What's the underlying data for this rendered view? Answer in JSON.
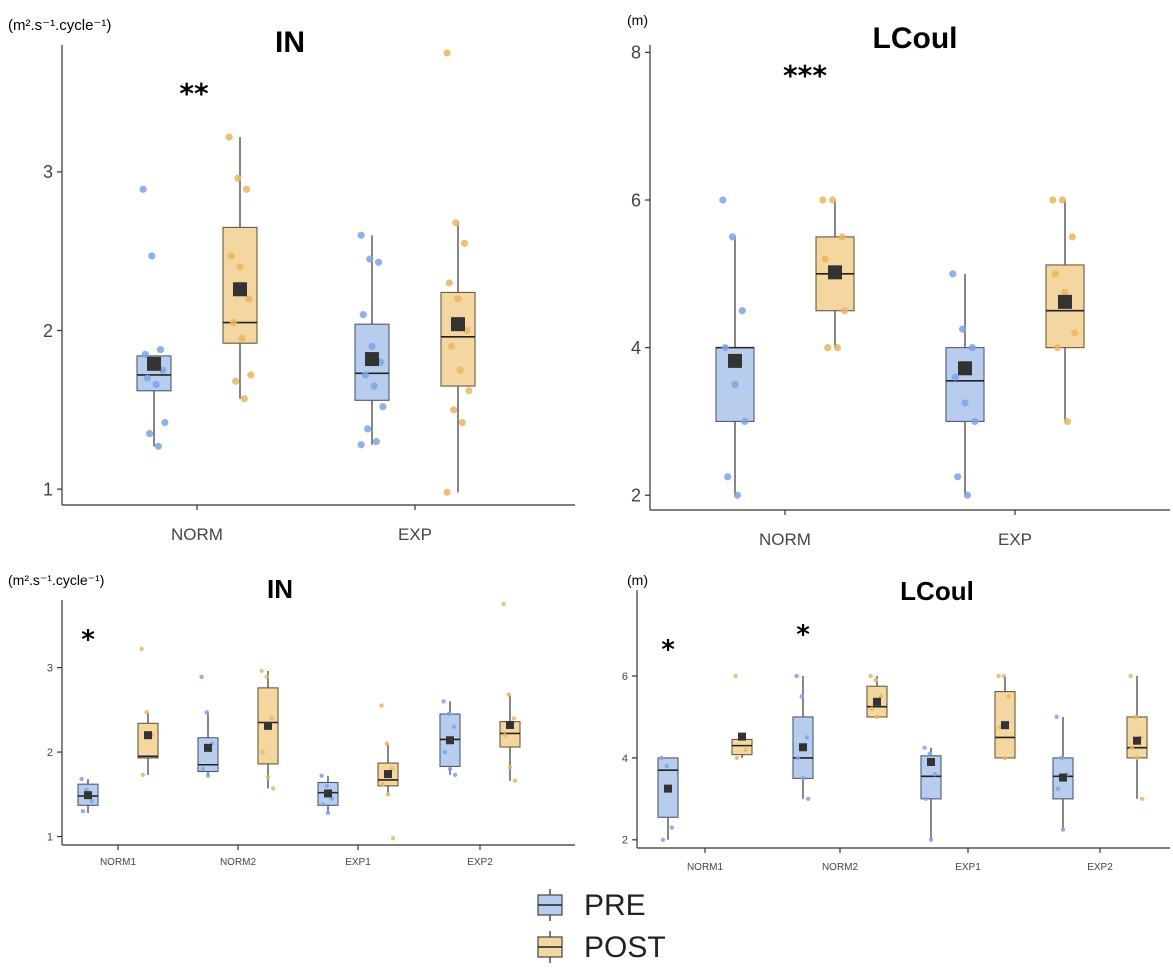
{
  "colors": {
    "pre_fill": "#b8cdee",
    "pre_stroke": "#4a5a78",
    "pre_point": "#7ba3e6",
    "post_fill": "#f3d6a0",
    "post_stroke": "#6b5a3a",
    "post_point": "#e9b560",
    "mean": "#333333"
  },
  "legend": {
    "items": [
      {
        "label": "PRE",
        "color": "#b8cdee"
      },
      {
        "label": "POST",
        "color": "#f3d6a0"
      }
    ]
  },
  "chart_data": [
    {
      "type": "box",
      "title": "IN",
      "ylabel": "(m².s⁻¹.cycle⁻¹)",
      "ylim": [
        0.9,
        3.8
      ],
      "yticks": [
        "1",
        "2",
        "3"
      ],
      "yticks_val": [
        1,
        2,
        3
      ],
      "categories": [
        "NORM",
        "EXP"
      ],
      "groups": [
        {
          "category": "NORM",
          "significance": "**",
          "pre": {
            "q1": 1.62,
            "median": 1.72,
            "q3": 1.84,
            "whisker_low": 1.27,
            "whisker_high": 1.84,
            "mean": 1.79,
            "points": [
              2.89,
              2.47,
              1.88,
              1.85,
              1.8,
              1.75,
              1.7,
              1.66,
              1.42,
              1.35,
              1.27
            ]
          },
          "post": {
            "q1": 1.92,
            "median": 2.05,
            "q3": 2.65,
            "whisker_low": 1.57,
            "whisker_high": 3.22,
            "mean": 2.26,
            "points": [
              3.22,
              2.96,
              2.89,
              2.47,
              2.4,
              2.2,
              2.05,
              1.95,
              1.72,
              1.68,
              1.57
            ]
          }
        },
        {
          "category": "EXP",
          "significance": "",
          "pre": {
            "q1": 1.56,
            "median": 1.73,
            "q3": 2.04,
            "whisker_low": 1.28,
            "whisker_high": 2.6,
            "mean": 1.82,
            "points": [
              2.6,
              2.45,
              2.43,
              2.1,
              1.9,
              1.8,
              1.72,
              1.65,
              1.52,
              1.38,
              1.3,
              1.28
            ]
          },
          "post": {
            "q1": 1.65,
            "median": 1.96,
            "q3": 2.24,
            "whisker_low": 0.98,
            "whisker_high": 2.68,
            "mean": 2.04,
            "points": [
              3.75,
              2.68,
              2.55,
              2.3,
              2.2,
              2.0,
              1.9,
              1.75,
              1.62,
              1.5,
              1.42,
              0.98
            ]
          }
        }
      ]
    },
    {
      "type": "box",
      "title": "LCoul",
      "ylabel": "(m)",
      "ylim": [
        1.8,
        8.1
      ],
      "yticks": [
        "2",
        "4",
        "6",
        "8"
      ],
      "yticks_val": [
        2,
        4,
        6,
        8
      ],
      "categories": [
        "NORM",
        "EXP"
      ],
      "groups": [
        {
          "category": "NORM",
          "significance": "***",
          "pre": {
            "q1": 3.0,
            "median": 4.0,
            "q3": 4.0,
            "whisker_low": 2.0,
            "whisker_high": 5.5,
            "mean": 3.82,
            "points": [
              6.0,
              5.5,
              4.5,
              4.0,
              3.5,
              3.0,
              2.25,
              2.0
            ]
          },
          "post": {
            "q1": 4.5,
            "median": 5.0,
            "q3": 5.5,
            "whisker_low": 4.0,
            "whisker_high": 6.0,
            "mean": 5.02,
            "points": [
              6.0,
              6.0,
              5.5,
              5.2,
              5.0,
              4.5,
              4.0,
              4.0
            ]
          }
        },
        {
          "category": "EXP",
          "significance": "",
          "pre": {
            "q1": 3.0,
            "median": 3.55,
            "q3": 4.0,
            "whisker_low": 2.0,
            "whisker_high": 5.0,
            "mean": 3.72,
            "points": [
              5.0,
              4.25,
              4.0,
              3.6,
              3.25,
              3.0,
              2.25,
              2.0
            ]
          },
          "post": {
            "q1": 4.0,
            "median": 4.5,
            "q3": 5.12,
            "whisker_low": 3.0,
            "whisker_high": 6.0,
            "mean": 4.62,
            "points": [
              6.0,
              6.0,
              5.5,
              5.0,
              4.75,
              4.2,
              4.0,
              3.0
            ]
          }
        }
      ]
    },
    {
      "type": "box",
      "title": "IN",
      "ylabel": "(m².s⁻¹.cycle⁻¹)",
      "ylim": [
        0.9,
        3.8
      ],
      "yticks": [
        "1",
        "2",
        "3"
      ],
      "yticks_val": [
        1,
        2,
        3
      ],
      "categories": [
        "NORM1",
        "NORM2",
        "EXP1",
        "EXP2"
      ],
      "groups": [
        {
          "category": "NORM1",
          "significance": "*",
          "pre": {
            "q1": 1.37,
            "median": 1.48,
            "q3": 1.62,
            "whisker_low": 1.28,
            "whisker_high": 1.68,
            "mean": 1.49,
            "points": [
              1.68,
              1.55,
              1.42,
              1.3
            ]
          },
          "post": {
            "q1": 1.93,
            "median": 1.95,
            "q3": 2.34,
            "whisker_low": 1.73,
            "whisker_high": 2.47,
            "mean": 2.2,
            "points": [
              3.22,
              2.47,
              2.2,
              1.73
            ]
          }
        },
        {
          "category": "NORM2",
          "significance": "",
          "pre": {
            "q1": 1.77,
            "median": 1.85,
            "q3": 2.17,
            "whisker_low": 1.72,
            "whisker_high": 2.47,
            "mean": 2.05,
            "points": [
              2.89,
              2.47,
              2.1,
              1.8,
              1.72
            ]
          },
          "post": {
            "q1": 1.86,
            "median": 2.35,
            "q3": 2.76,
            "whisker_low": 1.57,
            "whisker_high": 2.96,
            "mean": 2.31,
            "points": [
              2.96,
              2.89,
              2.4,
              2.0,
              1.7,
              1.57
            ]
          }
        },
        {
          "category": "EXP1",
          "significance": "",
          "pre": {
            "q1": 1.37,
            "median": 1.52,
            "q3": 1.64,
            "whisker_low": 1.28,
            "whisker_high": 1.72,
            "mean": 1.51,
            "points": [
              1.72,
              1.6,
              1.45,
              1.38,
              1.28
            ]
          },
          "post": {
            "q1": 1.6,
            "median": 1.67,
            "q3": 1.87,
            "whisker_low": 1.5,
            "whisker_high": 2.1,
            "mean": 1.74,
            "points": [
              2.55,
              2.1,
              1.8,
              1.62,
              1.5,
              0.98
            ]
          }
        },
        {
          "category": "EXP2",
          "significance": "",
          "pre": {
            "q1": 1.83,
            "median": 2.15,
            "q3": 2.45,
            "whisker_low": 1.73,
            "whisker_high": 2.6,
            "mean": 2.14,
            "points": [
              2.6,
              2.45,
              2.3,
              2.0,
              1.8,
              1.73
            ]
          },
          "post": {
            "q1": 2.06,
            "median": 2.22,
            "q3": 2.36,
            "whisker_low": 1.66,
            "whisker_high": 2.68,
            "mean": 2.32,
            "points": [
              3.75,
              2.68,
              2.4,
              2.2,
              1.82,
              1.66
            ]
          }
        }
      ]
    },
    {
      "type": "box",
      "title": "LCoul",
      "ylabel": "(m)",
      "ylim": [
        1.8,
        8.1
      ],
      "yticks": [
        "2",
        "4",
        "6"
      ],
      "yticks_val": [
        2,
        4,
        6
      ],
      "categories": [
        "NORM1",
        "NORM2",
        "EXP1",
        "EXP2"
      ],
      "groups": [
        {
          "category": "NORM1",
          "significance": "*",
          "pre": {
            "q1": 2.55,
            "median": 3.7,
            "q3": 4.0,
            "whisker_low": 2.0,
            "whisker_high": 4.0,
            "mean": 3.25,
            "points": [
              4.0,
              3.8,
              2.3,
              2.0
            ]
          },
          "post": {
            "q1": 4.08,
            "median": 4.3,
            "q3": 4.45,
            "whisker_low": 4.0,
            "whisker_high": 4.5,
            "mean": 4.52,
            "points": [
              6.0,
              4.5,
              4.2,
              4.0
            ]
          }
        },
        {
          "category": "NORM2",
          "significance": "*",
          "pre": {
            "q1": 3.5,
            "median": 4.0,
            "q3": 5.0,
            "whisker_low": 3.0,
            "whisker_high": 6.0,
            "mean": 4.26,
            "points": [
              6.0,
              5.5,
              4.5,
              4.0,
              3.5,
              3.0
            ]
          },
          "post": {
            "q1": 5.0,
            "median": 5.25,
            "q3": 5.75,
            "whisker_low": 5.0,
            "whisker_high": 6.0,
            "mean": 5.37,
            "points": [
              6.0,
              5.9,
              5.5,
              5.2,
              5.0
            ]
          }
        },
        {
          "category": "EXP1",
          "significance": "",
          "pre": {
            "q1": 3.0,
            "median": 3.55,
            "q3": 4.05,
            "whisker_low": 2.0,
            "whisker_high": 4.25,
            "mean": 3.9,
            "points": [
              4.25,
              4.1,
              3.6,
              3.0,
              2.0
            ]
          },
          "post": {
            "q1": 4.0,
            "median": 4.5,
            "q3": 5.62,
            "whisker_low": 4.0,
            "whisker_high": 6.0,
            "mean": 4.8,
            "points": [
              6.0,
              6.0,
              5.5,
              4.75,
              4.0
            ]
          }
        },
        {
          "category": "EXP2",
          "significance": "",
          "pre": {
            "q1": 3.0,
            "median": 3.55,
            "q3": 4.0,
            "whisker_low": 2.25,
            "whisker_high": 5.0,
            "mean": 3.52,
            "points": [
              5.0,
              4.0,
              3.6,
              3.25,
              2.25
            ]
          },
          "post": {
            "q1": 4.0,
            "median": 4.25,
            "q3": 5.0,
            "whisker_low": 3.0,
            "whisker_high": 6.0,
            "mean": 4.42,
            "points": [
              6.0,
              5.0,
              4.5,
              4.25,
              4.0,
              3.0
            ]
          }
        }
      ]
    }
  ]
}
